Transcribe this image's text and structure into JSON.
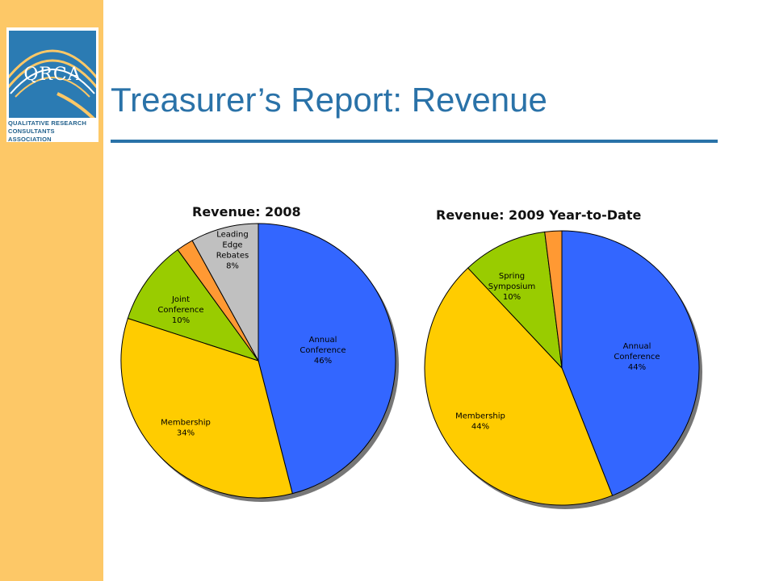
{
  "slide": {
    "title": "Treasurer’s Report:  Revenue"
  },
  "logo": {
    "mark": "QRCA",
    "line1": "QUALITATIVE RESEARCH",
    "line2": "CONSULTANTS ASSOCIATION"
  },
  "colors": {
    "sidebar": "#fdc867",
    "title": "#2a72a8",
    "annual_conference": "#3366ff",
    "membership": "#ffcc00",
    "joint_conference": "#99cc00",
    "orange": "#ff9933",
    "leading_edge": "#c0c0c0"
  },
  "chart_data": [
    {
      "type": "pie",
      "title": "Revenue:  2008",
      "slices": [
        {
          "label": [
            "Annual",
            "Conference"
          ],
          "value": 46,
          "pct": "46%",
          "color": "#3366ff"
        },
        {
          "label": [
            "Membership"
          ],
          "value": 34,
          "pct": "34%",
          "color": "#ffcc00"
        },
        {
          "label": [
            "Joint",
            "Conference"
          ],
          "value": 10,
          "pct": "10%",
          "color": "#99cc00"
        },
        {
          "label": [],
          "value": 2,
          "pct": "",
          "color": "#ff9933"
        },
        {
          "label": [
            "Leading",
            "Edge",
            "Rebates"
          ],
          "value": 8,
          "pct": "8%",
          "color": "#c0c0c0"
        }
      ]
    },
    {
      "type": "pie",
      "title": "Revenue: 2009 Year-to-Date",
      "slices": [
        {
          "label": [
            "Annual",
            "Conference"
          ],
          "value": 44,
          "pct": "44%",
          "color": "#3366ff"
        },
        {
          "label": [
            "Membership"
          ],
          "value": 44,
          "pct": "44%",
          "color": "#ffcc00"
        },
        {
          "label": [
            "Spring",
            "Symposium"
          ],
          "value": 10,
          "pct": "10%",
          "color": "#99cc00"
        },
        {
          "label": [],
          "value": 2,
          "pct": "",
          "color": "#ff9933"
        }
      ]
    }
  ]
}
